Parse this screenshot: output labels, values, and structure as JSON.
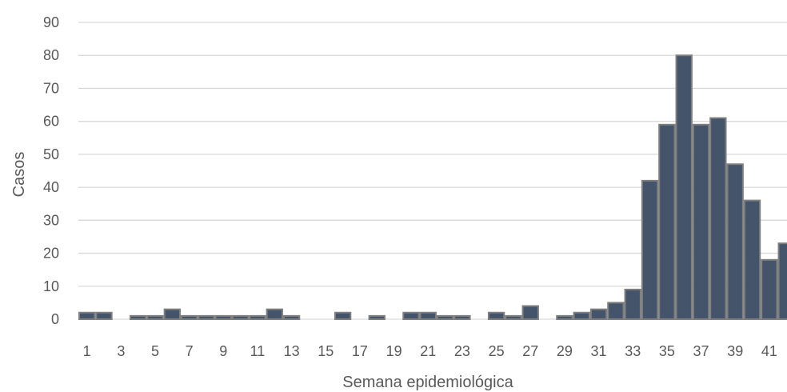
{
  "chart_data": {
    "type": "bar",
    "xlabel": "Semana epidemiológica",
    "ylabel": "Casos",
    "ylim": [
      0,
      90
    ],
    "y_ticks": [
      0,
      10,
      20,
      30,
      40,
      50,
      60,
      70,
      80,
      90
    ],
    "x_tick_labels": [
      "1",
      "3",
      "5",
      "7",
      "9",
      "11",
      "13",
      "15",
      "17",
      "19",
      "21",
      "23",
      "25",
      "27",
      "29",
      "31",
      "33",
      "35",
      "37",
      "39",
      "41"
    ],
    "categories": [
      "1",
      "2",
      "3",
      "4",
      "5",
      "6",
      "7",
      "8",
      "9",
      "10",
      "11",
      "12",
      "13",
      "14",
      "15",
      "16",
      "17",
      "18",
      "19",
      "20",
      "21",
      "22",
      "23",
      "24",
      "25",
      "26",
      "27",
      "28",
      "29",
      "30",
      "31",
      "32",
      "33",
      "34",
      "35",
      "36",
      "37",
      "38",
      "39",
      "40",
      "41",
      "42"
    ],
    "values": [
      2,
      2,
      0,
      1,
      1,
      3,
      1,
      1,
      1,
      1,
      1,
      3,
      1,
      0,
      0,
      2,
      0,
      1,
      0,
      2,
      2,
      1,
      1,
      0,
      2,
      1,
      4,
      0,
      1,
      2,
      3,
      5,
      9,
      42,
      59,
      80,
      59,
      61,
      47,
      36,
      18,
      23
    ],
    "grid": true,
    "colors": {
      "bar_fill": "#44546a",
      "bar_stroke": "#7f7f7f",
      "grid": "#d9d9d9",
      "text": "#595959"
    }
  }
}
